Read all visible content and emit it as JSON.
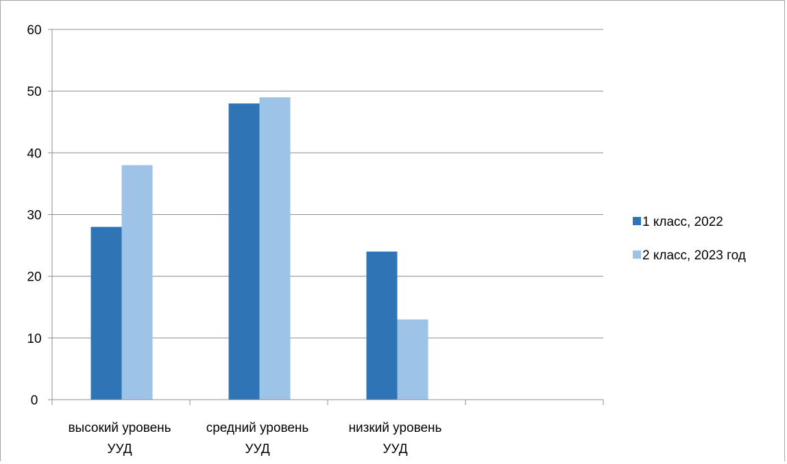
{
  "chart_data": {
    "type": "bar",
    "categories": [
      [
        "высокий уровень",
        "УУД"
      ],
      [
        "средний уровень",
        "УУД"
      ],
      [
        "низкий уровень",
        "УУД"
      ],
      [
        "",
        ""
      ]
    ],
    "series": [
      {
        "name": "1 класс, 2022",
        "color": "#2e75b6",
        "values": [
          28,
          48,
          24,
          null
        ]
      },
      {
        "name": "2 класс, 2023 год",
        "color": "#9dc3e6",
        "values": [
          38,
          49,
          13,
          null
        ]
      }
    ],
    "yticks": [
      "0",
      "10",
      "20",
      "30",
      "40",
      "50",
      "60"
    ],
    "ylim": [
      0,
      60
    ],
    "grid": true,
    "legend": "right",
    "title": "",
    "xlabel": "",
    "ylabel": ""
  }
}
